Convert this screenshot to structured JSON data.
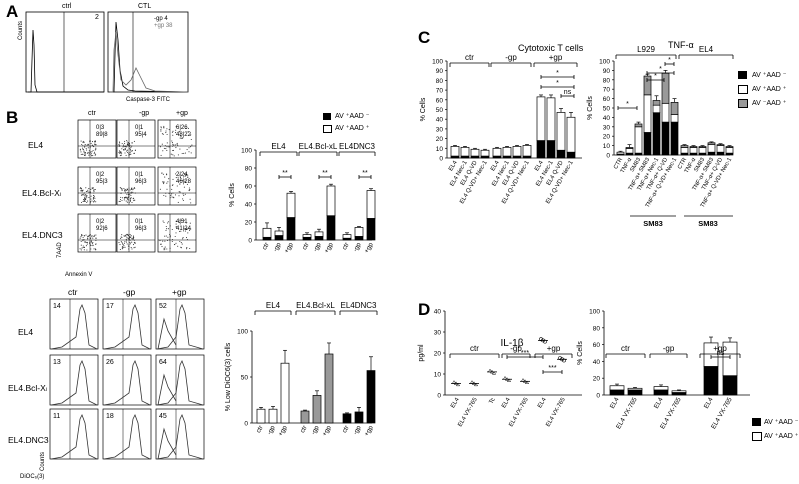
{
  "panels": {
    "a": "A",
    "b": "B",
    "c": "C",
    "d": "D"
  },
  "panel_a": {
    "ctrl_title": "ctrl",
    "ctl_title": "CTL",
    "ctrl_value": "2",
    "ctl_value_1": "-gp 4",
    "ctl_value_2": "+gp 38",
    "y_label": "Counts",
    "x_label": "Caspase-3 FITC"
  },
  "panel_b": {
    "col_headers": [
      "ctr",
      "-gp",
      "+gp"
    ],
    "row_labels": [
      "EL4",
      "EL4.Bcl-Xₗ",
      "EL4.DNC3"
    ],
    "x_axis_label": "Annexin V",
    "y_axis_label": "7AAD",
    "quadrants": [
      [
        "0|3 / 89|8",
        "0|1 / 95|4",
        "6|26 / 48|22"
      ],
      [
        "0|2 / 95|3",
        "0|1 / 96|3",
        "2|24 / 46|28"
      ],
      [
        "0|2 / 92|6",
        "0|1 / 96|3",
        "4|31 / 41|24"
      ]
    ],
    "hist_values": [
      [
        "14",
        "17",
        "52"
      ],
      [
        "13",
        "26",
        "64"
      ],
      [
        "11",
        "18",
        "45"
      ]
    ],
    "hist_x_label": "DiOC₆(3)",
    "hist_y_label": "Counts"
  },
  "legend_av": {
    "black": "AV ⁺AAD ⁻",
    "white": "AV ⁺AAD ⁺",
    "grey": "AV ⁻AAD ⁺"
  },
  "chart_data": [
    {
      "id": "b-top-bar",
      "type": "bar",
      "stacked": true,
      "groups": [
        "EL4",
        "EL4.Bcl-xL",
        "EL4DNC3"
      ],
      "categories": [
        "ctr",
        "-gp",
        "+gp",
        "ctr",
        "-gp",
        "+gp",
        "ctr",
        "-gp",
        "+gp"
      ],
      "series": [
        {
          "name": "AV+AAD-",
          "values": [
            3,
            5,
            25,
            3,
            4,
            27,
            2,
            4,
            24
          ]
        },
        {
          "name": "AV+AAD+",
          "values": [
            10,
            5,
            27,
            3,
            5,
            33,
            4,
            10,
            31
          ]
        }
      ],
      "errors": [
        6,
        4,
        2,
        2,
        3,
        2,
        2,
        1,
        2
      ],
      "significance": [
        "**",
        "**",
        "**"
      ],
      "ylabel": "% Cells",
      "ylim": [
        0,
        100
      ],
      "yticks": [
        0,
        20,
        40,
        60,
        80,
        100
      ]
    },
    {
      "id": "b-bottom-bar",
      "type": "bar",
      "groups": [
        "EL4",
        "EL4.Bcl-xL",
        "EL4DNC3"
      ],
      "categories": [
        "ctr",
        "-gp",
        "+gp",
        "ctr",
        "-gp",
        "+gp",
        "ctr",
        "-gp",
        "+gp"
      ],
      "values": [
        15,
        15,
        65,
        13,
        30,
        75,
        10,
        12,
        57
      ],
      "errors": [
        2,
        3,
        14,
        1,
        5,
        12,
        1,
        5,
        15
      ],
      "ylabel": "% Low DiOC6(3) cells",
      "ylim": [
        0,
        100
      ],
      "yticks": [
        0,
        50,
        100
      ]
    },
    {
      "id": "c-cytotoxic",
      "type": "bar",
      "stacked": true,
      "title": "Cytotoxic T cells",
      "groups": [
        "ctr",
        "-gp",
        "+gp"
      ],
      "categories": [
        "EL4",
        "EL4 Nec-1",
        "EL4 Q-VD",
        "EL4 Q-VD+ Nec-1",
        "EL4",
        "EL4 Nec-1",
        "EL4 Q-VD",
        "EL4 Q-VD+ Nec-1",
        "EL4",
        "EL4 Nec-1",
        "EL4 Q-VD",
        "EL4 Q-VD+ Nec-1"
      ],
      "series": [
        {
          "name": "AV+AAD-",
          "values": [
            2,
            2,
            2,
            2,
            2,
            2,
            2,
            2,
            18,
            18,
            8,
            6
          ]
        },
        {
          "name": "AV+AAD+",
          "values": [
            10,
            9,
            7,
            6,
            8,
            9,
            10,
            11,
            45,
            44,
            39,
            36
          ]
        }
      ],
      "errors": [
        1,
        1,
        1,
        1,
        1,
        1,
        1,
        1,
        2,
        3,
        4,
        5
      ],
      "significance": [
        "*",
        "*",
        "ns"
      ],
      "ylabel": "% Cells",
      "ylim": [
        0,
        100
      ],
      "yticks": [
        0,
        10,
        20,
        30,
        40,
        50,
        60,
        70,
        80,
        90,
        100
      ]
    },
    {
      "id": "c-tnf",
      "type": "bar",
      "stacked": true,
      "title": "TNF-α",
      "groups": [
        "L929",
        "EL4"
      ],
      "group_footer": "SM83",
      "categories": [
        "CTR",
        "TNF-α",
        "SM83",
        "TNF-α+ SM83",
        "TNF-α+ Nec-1",
        "TNF-α+ Q-VD",
        "TNF-α+ Q-VD+ Nec-1",
        "CTR",
        "TNF-α",
        "SM83",
        "TNF-α+ SM83",
        "TNF-α+ Q-VD",
        "TNF-α+ Q-VD+ Nec-1"
      ],
      "series": [
        {
          "name": "AV+AAD-",
          "values": [
            1,
            2,
            2,
            24,
            45,
            35,
            35,
            2,
            2,
            2,
            3,
            3,
            2
          ]
        },
        {
          "name": "AV+AAD+",
          "values": [
            2,
            5,
            28,
            40,
            8,
            20,
            8,
            6,
            6,
            6,
            8,
            7,
            6
          ]
        },
        {
          "name": "AV-AAD+",
          "values": [
            0,
            1,
            3,
            20,
            5,
            32,
            13,
            2,
            1,
            1,
            2,
            1,
            1
          ]
        }
      ],
      "errors": [
        1,
        3,
        2,
        2,
        5,
        3,
        4,
        1,
        1,
        1,
        1,
        1,
        1
      ],
      "significance": [
        "*",
        "*",
        "*",
        "*"
      ],
      "ylabel": "% Cells",
      "ylim": [
        0,
        100
      ],
      "yticks": [
        0,
        10,
        20,
        30,
        40,
        50,
        60,
        70,
        80,
        90,
        100
      ]
    },
    {
      "id": "d-il1b",
      "type": "scatter",
      "title": "IL-1β",
      "groups": [
        "ctr",
        "-gp",
        "+gp"
      ],
      "categories": [
        "EL4",
        "EL4 VX-765",
        "Tc^CD8/+",
        "EL4",
        "EL4 VX-765",
        "EL4",
        "EL4 VX-765"
      ],
      "values": [
        5.5,
        5.5,
        11,
        7.5,
        6.5,
        26,
        17
      ],
      "significance": [
        "***",
        "***"
      ],
      "ylabel": "pg/ml",
      "ylim": [
        0,
        40
      ],
      "yticks": [
        0,
        10,
        20,
        30,
        40
      ]
    },
    {
      "id": "d-bar",
      "type": "bar",
      "stacked": true,
      "groups": [
        "ctr",
        "-gp",
        "+gp"
      ],
      "categories": [
        "EL4",
        "EL4 VX-765",
        "EL4",
        "EL4 VX-765",
        "EL4",
        "EL4 VX-765"
      ],
      "series": [
        {
          "name": "AV+AAD-",
          "values": [
            6,
            6,
            6,
            3,
            34,
            23
          ]
        },
        {
          "name": "AV+AAD+",
          "values": [
            5,
            2,
            4,
            2,
            28,
            40
          ]
        }
      ],
      "errors": [
        2,
        1,
        2,
        1,
        7,
        5
      ],
      "significance": [
        "ns"
      ],
      "ylabel": "% Cells",
      "ylim": [
        0,
        100
      ],
      "yticks": [
        0,
        20,
        40,
        60,
        80,
        100
      ]
    }
  ],
  "colors": {
    "black": "#000000",
    "white": "#ffffff",
    "grey": "#999999"
  }
}
